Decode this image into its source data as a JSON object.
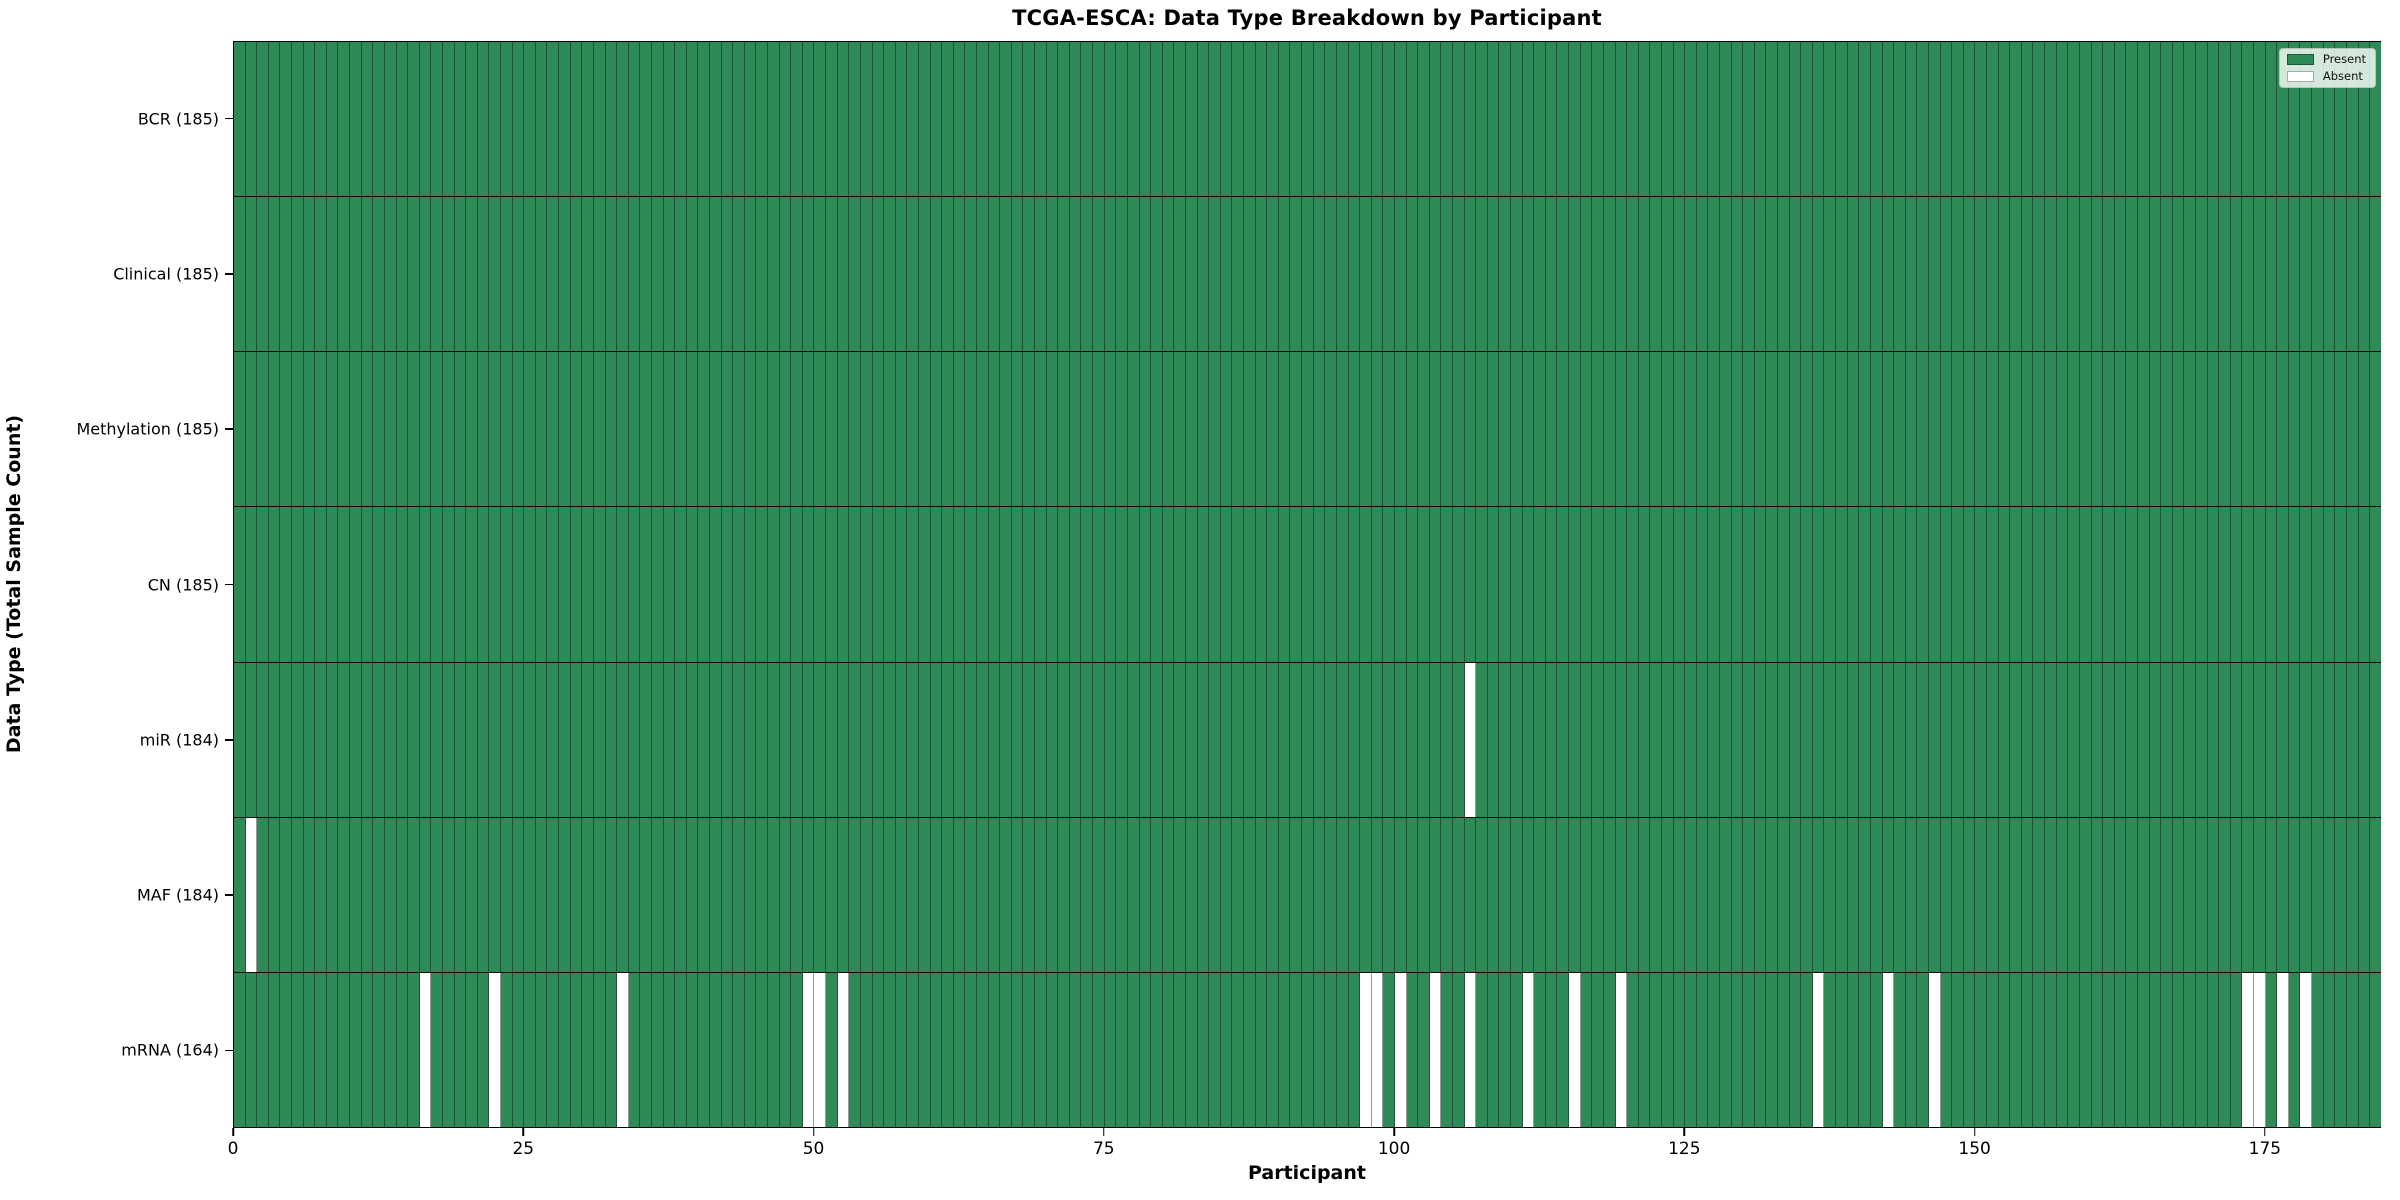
{
  "chart_data": {
    "type": "heatmap",
    "title": "TCGA-ESCA: Data Type Breakdown by Participant",
    "xlabel": "Participant",
    "ylabel": "Data Type (Total Sample Count)",
    "n_participants": 185,
    "xlim": [
      0,
      185
    ],
    "x_ticks": [
      0,
      25,
      50,
      75,
      100,
      125,
      150,
      175
    ],
    "grid": false,
    "legend_position": "upper right",
    "legend": [
      {
        "label": "Present",
        "swatch": "present"
      },
      {
        "label": "Absent",
        "swatch": "absent"
      }
    ],
    "rows": [
      {
        "label": "BCR (185)",
        "data_type": "BCR",
        "present_count": 185,
        "absent_participants": []
      },
      {
        "label": "Clinical (185)",
        "data_type": "Clinical",
        "present_count": 185,
        "absent_participants": []
      },
      {
        "label": "Methylation (185)",
        "data_type": "Methylation",
        "present_count": 185,
        "absent_participants": []
      },
      {
        "label": "CN (185)",
        "data_type": "CN",
        "present_count": 185,
        "absent_participants": []
      },
      {
        "label": "miR (184)",
        "data_type": "miR",
        "present_count": 184,
        "absent_participants": [
          106
        ]
      },
      {
        "label": "MAF (184)",
        "data_type": "MAF",
        "present_count": 184,
        "absent_participants": [
          1
        ]
      },
      {
        "label": "mRNA (164)",
        "data_type": "mRNA",
        "present_count": 164,
        "absent_participants": [
          16,
          22,
          33,
          49,
          50,
          52,
          97,
          98,
          100,
          103,
          106,
          111,
          115,
          119,
          136,
          142,
          146,
          173,
          174,
          176,
          178
        ]
      }
    ],
    "colors": {
      "present": "#2e8b57",
      "absent": "#ffffff",
      "bar_edge": "rgba(0,0,0,0.40)",
      "row_divider": "#0a0a0a",
      "axis_spine": "#000000",
      "legend_background": "rgba(255,255,255,0.8)",
      "legend_border": "#b7c4b7"
    }
  }
}
